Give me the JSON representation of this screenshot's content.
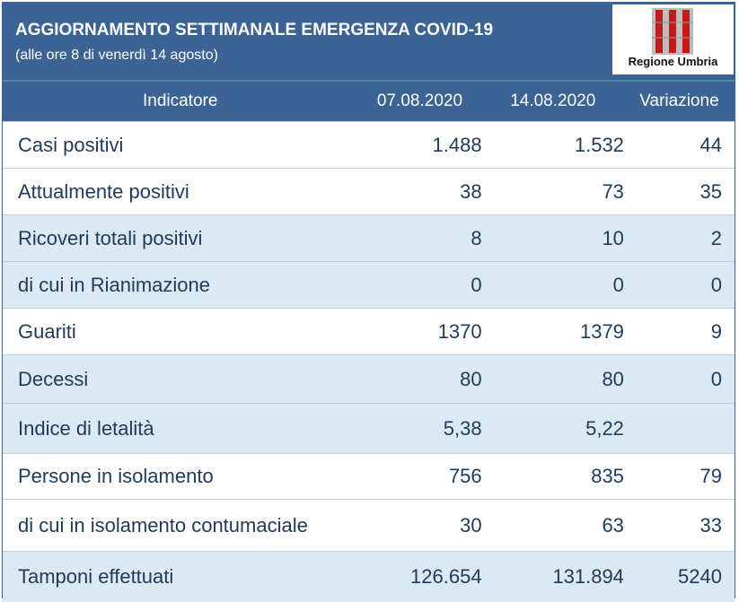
{
  "header": {
    "title": "AGGIORNAMENTO SETTIMANALE EMERGENZA COVID-19",
    "subtitle": "(alle ore 8 di venerdì 14 agosto)",
    "logo_text": "Regione Umbria"
  },
  "table": {
    "columns": [
      "Indicatore",
      "07.08.2020",
      "14.08.2020",
      "Variazione"
    ],
    "rows": [
      {
        "label": "Casi positivi",
        "v1": "1.488",
        "v2": "1.532",
        "var": "44"
      },
      {
        "label": "Attualmente positivi",
        "v1": "38",
        "v2": "73",
        "var": "35"
      },
      {
        "label": "Ricoveri totali positivi",
        "v1": "8",
        "v2": "10",
        "var": "2"
      },
      {
        "label": "di cui in Rianimazione",
        "v1": "0",
        "v2": "0",
        "var": "0"
      },
      {
        "label": "Guariti",
        "v1": "1370",
        "v2": "1379",
        "var": "9"
      },
      {
        "label": "Decessi",
        "v1": "80",
        "v2": "80",
        "var": "0"
      },
      {
        "label": "Indice di letalità",
        "v1": "5,38",
        "v2": "5,22",
        "var": ""
      },
      {
        "label": "Persone in isolamento",
        "v1": "756",
        "v2": "835",
        "var": "79"
      },
      {
        "label": "di cui in isolamento contumaciale",
        "v1": "30",
        "v2": "63",
        "var": "33"
      },
      {
        "label": "Tamponi effettuati",
        "v1": "126.654",
        "v2": "131.894",
        "var": "5240"
      }
    ]
  },
  "colors": {
    "header": "#3b6393",
    "row_alt": "#dbe9f3",
    "text": "#1f3a5a"
  }
}
